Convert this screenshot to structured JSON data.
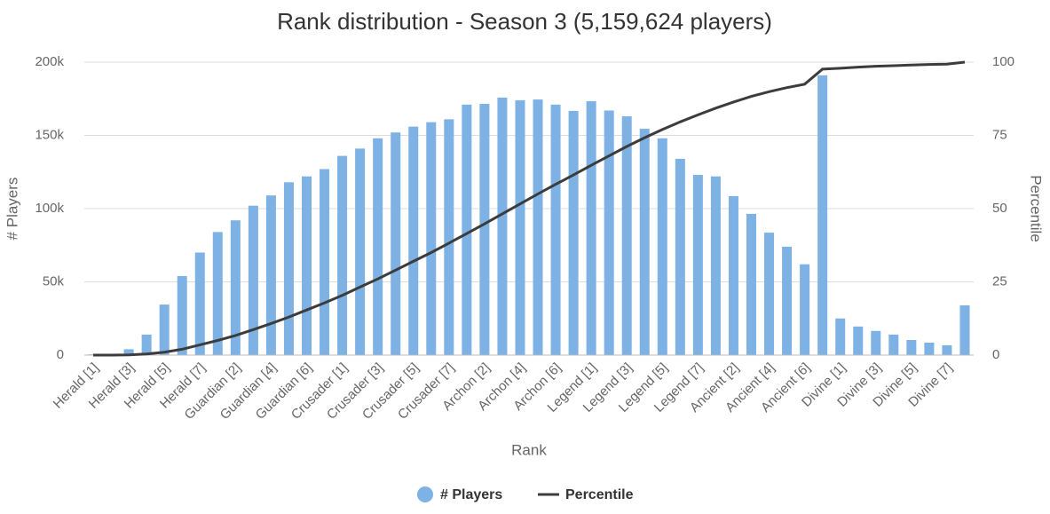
{
  "chart_data": {
    "type": "bar_line",
    "title": "Rank distribution - Season 3 (5,159,624 players)",
    "x_label": "Rank",
    "y_label": "# Players",
    "y2_label": "Percentile",
    "categories": [
      "Herald [1]",
      null,
      "Herald [3]",
      null,
      "Herald [5]",
      null,
      "Herald [7]",
      null,
      "Guardian [2]",
      null,
      "Guardian [4]",
      null,
      "Guardian [6]",
      null,
      "Crusader [1]",
      null,
      "Crusader [3]",
      null,
      "Crusader [5]",
      null,
      "Crusader [7]",
      null,
      "Archon [2]",
      null,
      "Archon [4]",
      null,
      "Archon [6]",
      null,
      "Legend [1]",
      null,
      "Legend [3]",
      null,
      "Legend [5]",
      null,
      "Legend [7]",
      null,
      "Ancient [2]",
      null,
      "Ancient [4]",
      null,
      "Ancient [6]",
      null,
      "Divine [1]",
      null,
      "Divine [3]",
      null,
      "Divine [5]",
      null,
      "Divine [7]",
      null
    ],
    "series": [
      {
        "name": "# Players",
        "color": "#7eb2e4",
        "values": [
          500,
          600,
          4000,
          14000,
          34500,
          54000,
          70000,
          84000,
          92000,
          102000,
          109000,
          118000,
          122000,
          127000,
          136000,
          141000,
          148000,
          152000,
          156000,
          159000,
          161000,
          171000,
          171500,
          175800,
          174000,
          174500,
          171000,
          166700,
          173300,
          167000,
          163000,
          154500,
          148000,
          134000,
          123000,
          122000,
          108500,
          96400,
          83600,
          74000,
          62000,
          191000,
          25000,
          19500,
          16500,
          14000,
          10300,
          8500,
          6700,
          34000
        ]
      },
      {
        "name": "Percentile",
        "color": "#3c3c3c",
        "axis": "y2",
        "values": [
          0,
          0,
          0.1,
          0.4,
          1,
          2,
          3.5,
          5,
          6.7,
          8.7,
          10.8,
          13,
          15.4,
          17.8,
          20.4,
          23.2,
          26,
          29,
          32,
          35,
          38.2,
          41.5,
          44.8,
          48.2,
          51.6,
          55,
          58.3,
          61.5,
          64.8,
          68,
          71.2,
          74.2,
          77,
          79.6,
          82,
          84.3,
          86.4,
          88.3,
          89.9,
          91.3,
          92.5,
          97.6,
          97.9,
          98.3,
          98.6,
          98.8,
          99,
          99.2,
          99.3,
          100
        ]
      }
    ],
    "ylim": [
      0,
      200000
    ],
    "yticks": [
      0,
      {
        "value": 50000,
        "label": "50k"
      },
      {
        "value": 100000,
        "label": "100k"
      },
      {
        "value": 150000,
        "label": "150k"
      },
      {
        "value": 200000,
        "label": "200k"
      }
    ],
    "y2lim": [
      0,
      100
    ],
    "y2ticks": [
      0,
      25,
      50,
      75,
      100
    ],
    "grid": true,
    "legend": "bottom"
  }
}
